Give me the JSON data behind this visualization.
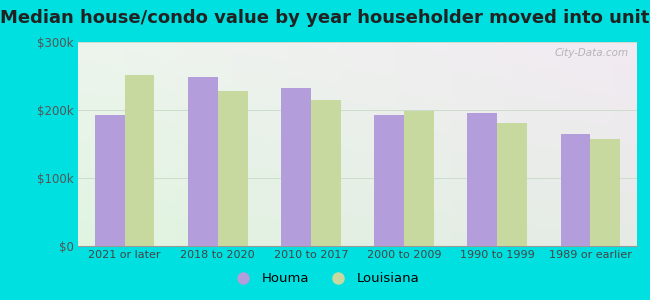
{
  "title": "Median house/condo value by year householder moved into unit",
  "categories": [
    "2021 or later",
    "2018 to 2020",
    "2010 to 2017",
    "2000 to 2009",
    "1990 to 1999",
    "1989 or earlier"
  ],
  "houma": [
    192000,
    249000,
    232000,
    193000,
    196000,
    165000
  ],
  "louisiana": [
    251000,
    228000,
    215000,
    198000,
    181000,
    158000
  ],
  "houma_color": "#b39ddb",
  "louisiana_color": "#c8d9a0",
  "ylim": [
    0,
    300000
  ],
  "yticks": [
    0,
    100000,
    200000,
    300000
  ],
  "ytick_labels": [
    "$0",
    "$100k",
    "$200k",
    "$300k"
  ],
  "outer_background": "#00e0e0",
  "watermark": "City-Data.com",
  "legend_labels": [
    "Houma",
    "Louisiana"
  ],
  "title_fontsize": 13,
  "bar_width": 0.32,
  "gridline_color": "#ccddcc"
}
